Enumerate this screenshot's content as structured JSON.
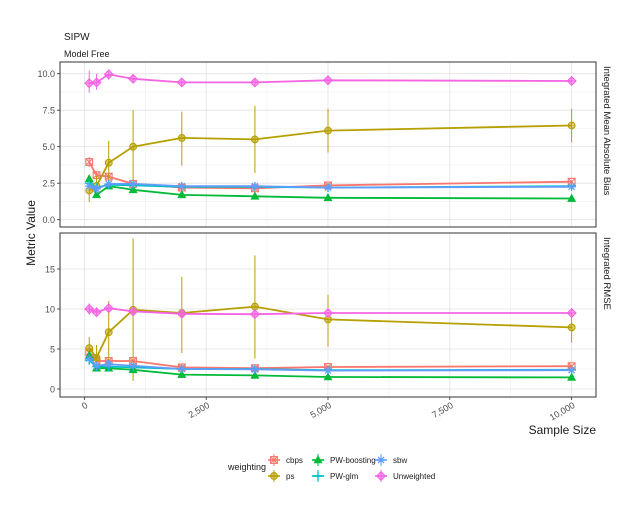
{
  "chart_data": {
    "type": "line",
    "title": "SIPW",
    "subtitle": "Model Free",
    "xlabel": "Sample Size",
    "ylabel": "Metric Value",
    "x_ticks": [
      0,
      2500,
      5000,
      7500,
      10000
    ],
    "x_tick_labels": [
      "0",
      "2,500",
      "5,000",
      "7,500",
      "10,000"
    ],
    "xlim": [
      -500,
      10500
    ],
    "x": [
      100,
      250,
      500,
      1000,
      2000,
      3500,
      5000,
      10000
    ],
    "legend": {
      "title": "weighting",
      "placement": "bottom"
    },
    "grid": true,
    "panels": [
      {
        "strip_label": "Integrated Mean Absolute Bias",
        "ylim": [
          -0.5,
          10.8
        ],
        "y_ticks": [
          0.0,
          2.5,
          5.0,
          7.5,
          10.0
        ],
        "y_tick_labels": [
          "0.0",
          "2.5",
          "5.0",
          "7.5",
          "10.0"
        ],
        "series": [
          {
            "name": "cbps",
            "color": "#F8766D",
            "shape": "square-x",
            "values": [
              3.95,
              3.05,
              2.95,
              2.45,
              2.2,
              2.15,
              2.35,
              2.6
            ],
            "err_low": [
              3.6,
              2.8,
              2.75,
              2.3,
              2.1,
              2.05,
              2.25,
              2.5
            ],
            "err_high": [
              4.3,
              3.3,
              3.15,
              2.6,
              2.3,
              2.25,
              2.45,
              2.7
            ]
          },
          {
            "name": "ps",
            "color": "#B79F00",
            "shape": "circle",
            "values": [
              2.0,
              2.3,
              3.9,
              5.0,
              5.6,
              5.5,
              6.1,
              6.45
            ],
            "err_low": [
              1.2,
              1.7,
              2.5,
              2.6,
              3.7,
              3.2,
              4.6,
              5.3
            ],
            "err_high": [
              2.8,
              3.0,
              5.4,
              7.5,
              7.4,
              7.8,
              7.6,
              7.6
            ]
          },
          {
            "name": "PW-boosting",
            "color": "#00BA38",
            "shape": "triangle",
            "values": [
              2.8,
              1.7,
              2.3,
              2.05,
              1.7,
              1.6,
              1.5,
              1.45
            ],
            "err_low": [
              2.6,
              1.5,
              2.15,
              1.95,
              1.6,
              1.5,
              1.42,
              1.4
            ],
            "err_high": [
              3.0,
              1.9,
              2.45,
              2.15,
              1.8,
              1.7,
              1.6,
              1.5
            ]
          },
          {
            "name": "PW-glm",
            "color": "#00BFC4",
            "shape": "plus",
            "values": [
              2.5,
              2.2,
              2.4,
              2.35,
              2.25,
              2.25,
              2.2,
              2.3
            ],
            "err_low": [
              2.4,
              2.1,
              2.3,
              2.25,
              2.15,
              2.15,
              2.1,
              2.2
            ],
            "err_high": [
              2.6,
              2.3,
              2.5,
              2.45,
              2.35,
              2.35,
              2.3,
              2.4
            ]
          },
          {
            "name": "sbw",
            "color": "#619CFF",
            "shape": "star",
            "values": [
              2.3,
              2.1,
              2.45,
              2.45,
              2.3,
              2.3,
              2.2,
              2.25
            ],
            "err_low": [
              2.2,
              2.0,
              2.35,
              2.35,
              2.2,
              2.2,
              2.1,
              2.15
            ],
            "err_high": [
              2.4,
              2.2,
              2.55,
              2.55,
              2.4,
              2.4,
              2.3,
              2.35
            ]
          },
          {
            "name": "Unweighted",
            "color": "#F564E3",
            "shape": "diamond-plus",
            "values": [
              9.35,
              9.4,
              9.95,
              9.65,
              9.4,
              9.4,
              9.55,
              9.5
            ],
            "err_low": [
              8.7,
              8.9,
              9.6,
              9.4,
              9.25,
              9.25,
              9.4,
              9.4
            ],
            "err_high": [
              10.2,
              10.0,
              10.3,
              9.9,
              9.55,
              9.55,
              9.7,
              9.6
            ]
          }
        ]
      },
      {
        "strip_label": "Integrated RMSE",
        "ylim": [
          -1.0,
          19.5
        ],
        "y_ticks": [
          0,
          5,
          10,
          15
        ],
        "y_tick_labels": [
          "0",
          "5",
          "10",
          "15"
        ],
        "series": [
          {
            "name": "cbps",
            "color": "#F8766D",
            "shape": "square-x",
            "values": [
              4.6,
              3.5,
              3.5,
              3.5,
              2.7,
              2.6,
              2.75,
              2.85
            ],
            "err_low": [
              4.2,
              3.2,
              3.2,
              3.2,
              2.5,
              2.4,
              2.55,
              2.7
            ],
            "err_high": [
              5.0,
              3.8,
              3.8,
              3.8,
              2.9,
              2.8,
              2.95,
              3.0
            ]
          },
          {
            "name": "ps",
            "color": "#B79F00",
            "shape": "circle",
            "values": [
              5.1,
              3.9,
              7.1,
              9.9,
              9.5,
              10.3,
              8.7,
              7.7
            ],
            "err_low": [
              3.5,
              2.5,
              3.0,
              1.0,
              4.5,
              3.8,
              5.3,
              5.8
            ],
            "err_high": [
              6.5,
              5.5,
              11.0,
              18.8,
              14.0,
              16.7,
              11.8,
              9.6
            ]
          },
          {
            "name": "PW-boosting",
            "color": "#00BA38",
            "shape": "triangle",
            "values": [
              4.2,
              2.6,
              2.6,
              2.4,
              1.8,
              1.7,
              1.5,
              1.45
            ],
            "err_low": [
              3.9,
              2.4,
              2.45,
              2.2,
              1.6,
              1.5,
              1.4,
              1.35
            ],
            "err_high": [
              4.5,
              2.8,
              2.75,
              2.6,
              2.0,
              1.9,
              1.6,
              1.55
            ]
          },
          {
            "name": "PW-glm",
            "color": "#00BFC4",
            "shape": "plus",
            "values": [
              3.6,
              2.8,
              2.8,
              2.7,
              2.5,
              2.5,
              2.35,
              2.4
            ],
            "err_low": [
              3.4,
              2.6,
              2.65,
              2.55,
              2.35,
              2.35,
              2.25,
              2.3
            ],
            "err_high": [
              3.8,
              3.0,
              2.95,
              2.85,
              2.65,
              2.65,
              2.45,
              2.5
            ]
          },
          {
            "name": "sbw",
            "color": "#619CFF",
            "shape": "star",
            "values": [
              3.8,
              2.9,
              3.1,
              2.9,
              2.5,
              2.45,
              2.3,
              2.35
            ],
            "err_low": [
              3.6,
              2.7,
              2.9,
              2.75,
              2.35,
              2.3,
              2.2,
              2.25
            ],
            "err_high": [
              4.0,
              3.1,
              3.3,
              3.05,
              2.65,
              2.6,
              2.4,
              2.45
            ]
          },
          {
            "name": "Unweighted",
            "color": "#F564E3",
            "shape": "diamond-plus",
            "values": [
              10.0,
              9.6,
              10.1,
              9.7,
              9.4,
              9.35,
              9.5,
              9.5
            ],
            "err_low": [
              9.3,
              9.1,
              9.7,
              9.4,
              9.2,
              9.15,
              9.3,
              9.3
            ],
            "err_high": [
              10.7,
              10.1,
              10.5,
              10.0,
              9.6,
              9.55,
              9.7,
              9.7
            ]
          }
        ]
      }
    ]
  }
}
